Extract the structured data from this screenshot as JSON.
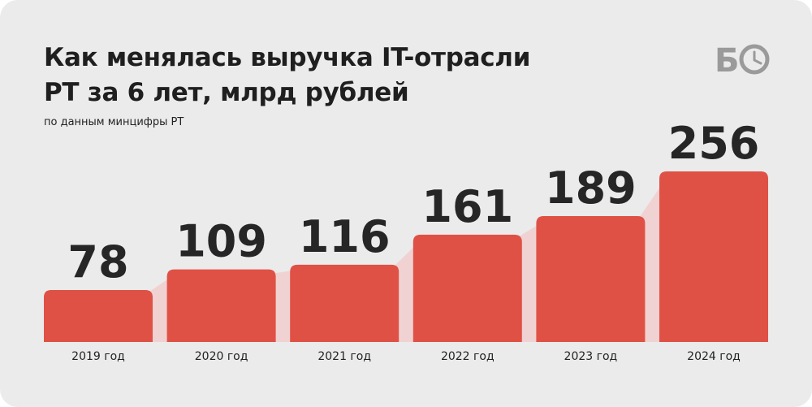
{
  "title_lines": [
    "Как менялась выручка IT-отрасли",
    "РТ за 6 лет, млрд рублей"
  ],
  "subtitle": "по данным минцифры РТ",
  "logo": {
    "letter": "Б",
    "icon": "clock-icon"
  },
  "colors": {
    "bar": "#e05145",
    "glow": "#f2caca",
    "background": "#ebebeb",
    "text": "#262626"
  },
  "chart_data": {
    "type": "bar",
    "title": "Как менялась выручка IT-отрасли РТ за 6 лет, млрд рублей",
    "subtitle": "по данным минцифры РТ",
    "categories": [
      "2019 год",
      "2020 год",
      "2021 год",
      "2022 год",
      "2023 год",
      "2024 год"
    ],
    "values": [
      78,
      109,
      116,
      161,
      189,
      256
    ],
    "xlabel": "",
    "ylabel": "",
    "grid": false,
    "legend": "none",
    "data_labels": true
  }
}
